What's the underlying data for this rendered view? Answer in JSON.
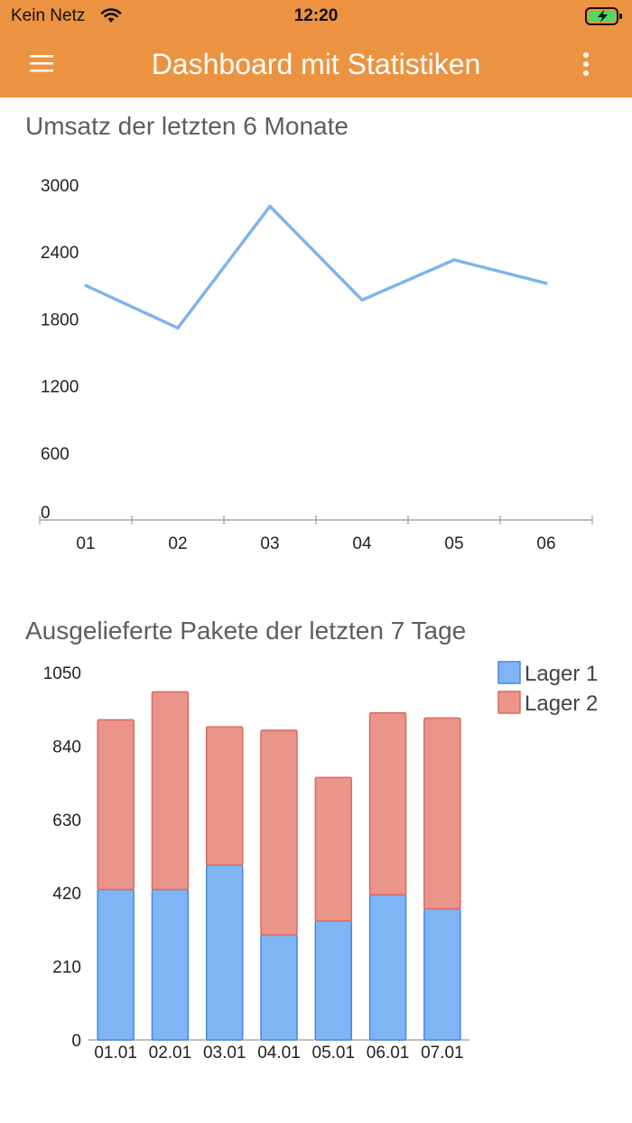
{
  "status_bar": {
    "carrier": "Kein Netz",
    "time": "12:20"
  },
  "toolbar": {
    "title": "Dashboard mit Statistiken",
    "menu_icon": "hamburger-menu-icon",
    "more_icon": "more-vertical-icon"
  },
  "colors": {
    "appbar": "#EC9341",
    "line": "#7FB4EC",
    "lager1_fill": "#7FB4F5",
    "lager1_stroke": "#4A86E0",
    "lager2_fill": "#EB948A",
    "lager2_stroke": "#DA6A5F"
  },
  "sections": {
    "revenue_title": "Umsatz der letzten 6 Monate",
    "packages_title": "Ausgelieferte Pakete der letzten 7 Tage"
  },
  "chart_data": [
    {
      "type": "line",
      "title": "Umsatz der letzten 6 Monate",
      "categories": [
        "01",
        "02",
        "03",
        "04",
        "05",
        "06"
      ],
      "values": [
        2100,
        1720,
        2810,
        1970,
        2330,
        2120
      ],
      "y_ticks": [
        "0",
        "600",
        "1200",
        "1800",
        "2400",
        "3000"
      ],
      "ylim": [
        0,
        3000
      ]
    },
    {
      "type": "bar",
      "stacked": true,
      "title": "Ausgelieferte Pakete der letzten 7 Tage",
      "categories": [
        "01.01",
        "02.01",
        "03.01",
        "04.01",
        "05.01",
        "06.01",
        "07.01"
      ],
      "series": [
        {
          "name": "Lager 1",
          "values": [
            430,
            430,
            500,
            300,
            340,
            415,
            375
          ]
        },
        {
          "name": "Lager 2",
          "values": [
            485,
            565,
            395,
            585,
            410,
            520,
            545
          ]
        }
      ],
      "y_ticks": [
        "0",
        "210",
        "420",
        "630",
        "840",
        "1050"
      ],
      "ylim": [
        0,
        1050
      ],
      "legend": "top-right"
    }
  ]
}
